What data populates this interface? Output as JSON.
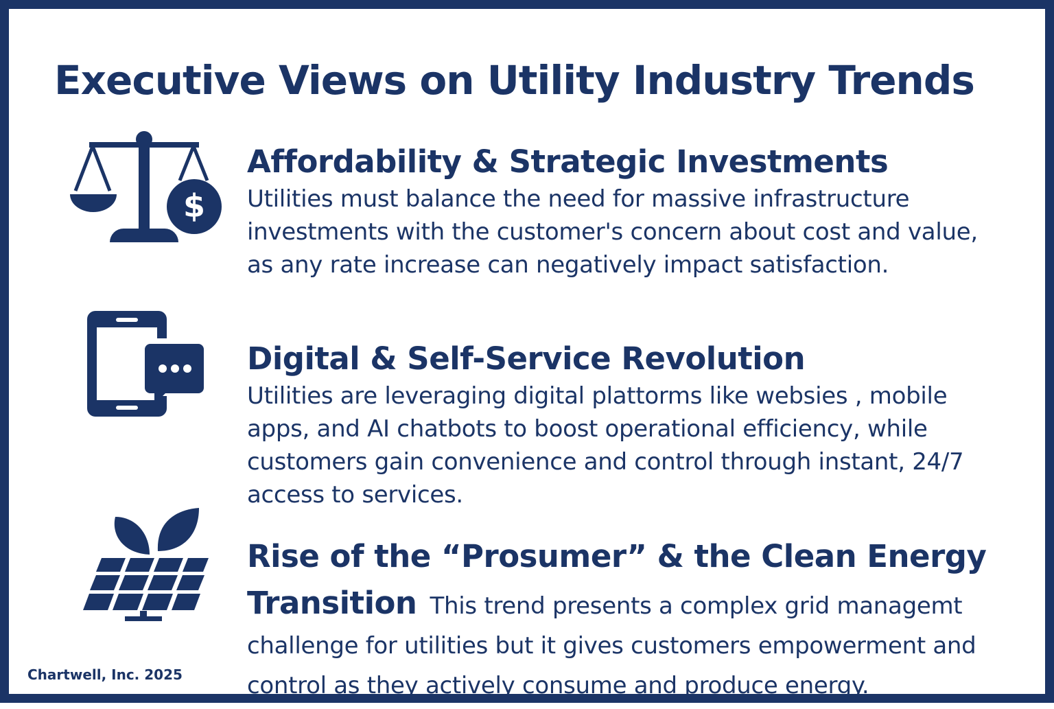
{
  "header": {
    "title": "Executive Views on Utility Industry Trends"
  },
  "items": [
    {
      "heading": "Affordability & Strategic Investments",
      "body": "Utilities must balance the need for massive infrastructure investments with the customer's concern about cost and value, as any rate increase can negatively impact satisfaction."
    },
    {
      "heading": "Digital & Self-Service Revolution",
      "body": "Utilities are leveraging digital plattorms like websies , mobile apps, and AI chatbots to boost operational efficiency, while customers gain convenience and control through instant, 24/7 access to services."
    },
    {
      "heading": "Rise of the “Prosumer” & the Clean Energy Transition",
      "body": "This trend presents a complex grid managemt challenge for utilities but it gives customers empowerment and control as they actively consume and produce energy."
    }
  ],
  "footer": {
    "credit": "Chartwell, Inc. 2025"
  }
}
